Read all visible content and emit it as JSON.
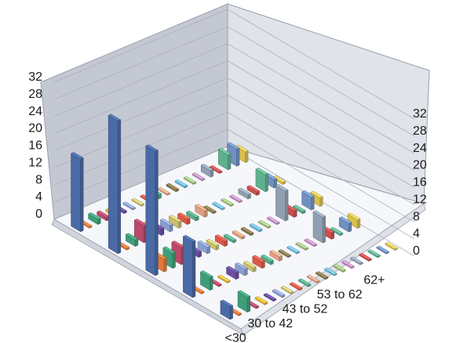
{
  "chart_data": {
    "type": "bar",
    "subtype": "3d-column",
    "categories": [
      "<30",
      "30 to 42",
      "43 to 52",
      "53 to 62",
      "62+"
    ],
    "z_ticks": [
      0,
      4,
      8,
      12,
      16,
      20,
      24,
      28,
      32
    ],
    "zlim": [
      0,
      32
    ],
    "depth_tick_labels": [
      "<30",
      "30 to 42",
      "43 to 52",
      "53 to 62",
      "62+"
    ],
    "grid": true,
    "legend": "none",
    "series_colors": [
      "#4a6aa5",
      "#e07a38",
      "#3f9e7a",
      "#b84a6a",
      "#e6b23a",
      "#6b4fa0",
      "#8a9fcf",
      "#c8c070",
      "#d85a48",
      "#5aaa8a",
      "#e0a080",
      "#8a7a50",
      "#70b8d8",
      "#a0c080",
      "#c090c0",
      "#90a0b0",
      "#c85050",
      "#60b090",
      "#7090c0",
      "#d8c050"
    ],
    "series": [
      {
        "values": [
          17,
          31,
          29,
          13,
          3
        ]
      },
      {
        "values": [
          0.3,
          0.4,
          3,
          0.3,
          0.3
        ]
      },
      {
        "values": [
          1.2,
          1.5,
          3.5,
          3,
          3.5
        ]
      },
      {
        "values": [
          0.8,
          4,
          4,
          0.3,
          0.3
        ]
      },
      {
        "values": [
          0.5,
          2.5,
          2.5,
          0.3,
          0.4
        ]
      },
      {
        "values": [
          0.4,
          1.5,
          1.2,
          1.5,
          0.3
        ]
      },
      {
        "values": [
          0.3,
          1.5,
          1.5,
          1.5,
          0.4
        ]
      },
      {
        "values": [
          0.3,
          1.5,
          1,
          1,
          0.3
        ]
      },
      {
        "values": [
          0.3,
          1.2,
          1.2,
          1.5,
          0.3
        ]
      },
      {
        "values": [
          1,
          0.8,
          0.5,
          0.8,
          0.3
        ]
      },
      {
        "values": [
          0.3,
          1.5,
          0.5,
          1,
          0.3
        ]
      },
      {
        "values": [
          0.4,
          0.3,
          0.4,
          0.3,
          0.3
        ]
      },
      {
        "values": [
          0.4,
          0.3,
          0.4,
          0.3,
          0.3
        ]
      },
      {
        "values": [
          0.3,
          0.3,
          0.3,
          0.3,
          0.3
        ]
      },
      {
        "values": [
          0.3,
          0.3,
          0.3,
          0.3,
          0.3
        ]
      },
      {
        "values": [
          1.5,
          1,
          7,
          6,
          0.3
        ]
      },
      {
        "values": [
          0.3,
          0.8,
          1.5,
          1.5,
          0.3
        ]
      },
      {
        "values": [
          3.5,
          4,
          0.5,
          0.4,
          0.3
        ]
      },
      {
        "values": [
          4,
          2,
          3,
          2,
          0.3
        ]
      },
      {
        "values": [
          2.5,
          0.5,
          2,
          2,
          0.3
        ]
      }
    ]
  }
}
